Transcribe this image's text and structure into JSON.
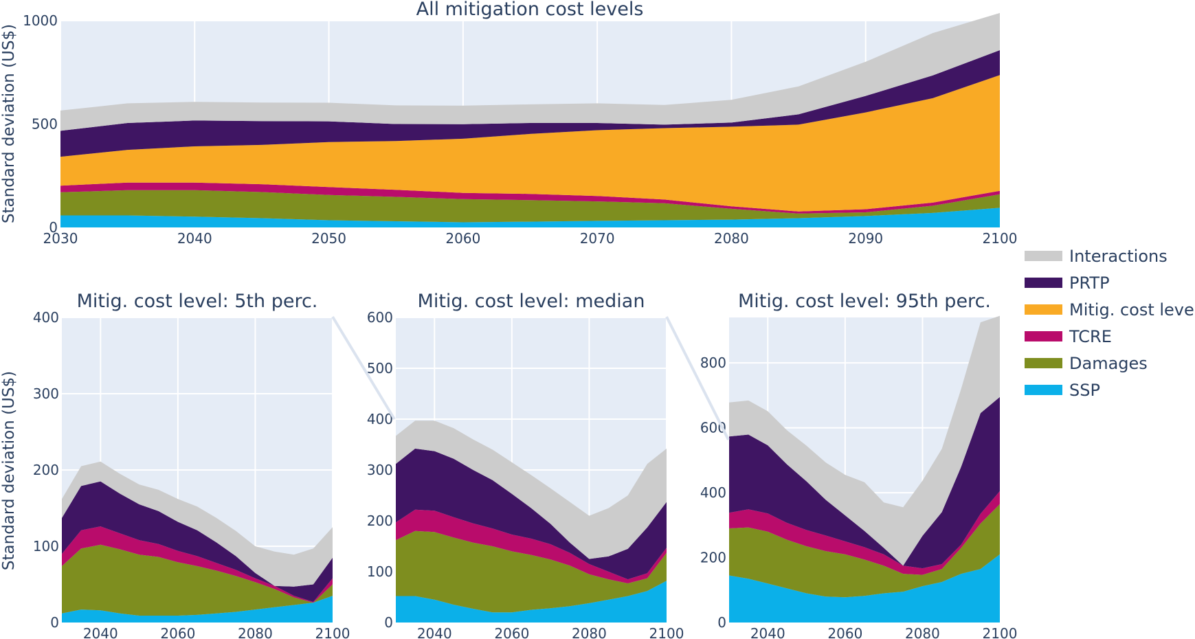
{
  "legend": [
    {
      "key": "interactions",
      "label": "Interactions",
      "color": "#CCCCCC"
    },
    {
      "key": "prtp",
      "label": "PRTP",
      "color": "#3F1563"
    },
    {
      "key": "mitig",
      "label": "Mitig. cost level",
      "color": "#F9AA25"
    },
    {
      "key": "tcre",
      "label": "TCRE",
      "color": "#B90C6B"
    },
    {
      "key": "damages",
      "label": "Damages",
      "color": "#7E8E1F"
    },
    {
      "key": "ssp",
      "label": "SSP",
      "color": "#0BB0E9"
    }
  ],
  "chart_data": [
    {
      "id": "all",
      "type": "area",
      "stacked": true,
      "title": "All mitigation cost levels",
      "xlabel": "",
      "ylabel": "Standard deviation (US$)",
      "x": [
        2030,
        2035,
        2040,
        2045,
        2050,
        2055,
        2060,
        2065,
        2070,
        2075,
        2080,
        2085,
        2090,
        2095,
        2100
      ],
      "xlim": [
        2030,
        2100
      ],
      "xticks": [
        2030,
        2040,
        2050,
        2060,
        2070,
        2080,
        2090,
        2100
      ],
      "ylim": [
        0,
        1000
      ],
      "yticks": [
        0,
        500,
        1000
      ],
      "series": [
        {
          "key": "ssp",
          "name": "SSP",
          "values": [
            58,
            58,
            52,
            45,
            35,
            30,
            25,
            28,
            32,
            35,
            38,
            45,
            55,
            70,
            95
          ]
        },
        {
          "key": "damages",
          "name": "Damages",
          "values": [
            112,
            122,
            128,
            126,
            122,
            118,
            112,
            104,
            94,
            82,
            52,
            22,
            18,
            35,
            65
          ]
        },
        {
          "key": "tcre",
          "name": "TCRE",
          "values": [
            32,
            37,
            37,
            38,
            38,
            34,
            30,
            30,
            26,
            18,
            12,
            10,
            15,
            15,
            17
          ]
        },
        {
          "key": "mitig",
          "name": "Mitig. cost level",
          "values": [
            140,
            158,
            175,
            190,
            218,
            236,
            262,
            290,
            318,
            345,
            385,
            420,
            468,
            505,
            560
          ]
        },
        {
          "key": "prtp",
          "name": "PRTP",
          "values": [
            125,
            130,
            125,
            115,
            100,
            82,
            70,
            53,
            35,
            17,
            20,
            50,
            80,
            110,
            120
          ]
        },
        {
          "key": "interactions",
          "name": "Interactions",
          "values": [
            98,
            95,
            90,
            90,
            90,
            90,
            90,
            90,
            95,
            95,
            110,
            135,
            165,
            205,
            180
          ]
        }
      ]
    },
    {
      "id": "p5",
      "type": "area",
      "stacked": true,
      "title": "Mitig. cost level: 5th perc.",
      "xlabel": "",
      "ylabel": "Standard deviation (US$)",
      "x": [
        2030,
        2035,
        2040,
        2045,
        2050,
        2055,
        2060,
        2065,
        2070,
        2075,
        2080,
        2085,
        2090,
        2095,
        2100
      ],
      "xlim": [
        2030,
        2100
      ],
      "xticks": [
        2040,
        2060,
        2080,
        2100
      ],
      "ylim": [
        0,
        400
      ],
      "yticks": [
        0,
        100,
        200,
        300,
        400
      ],
      "series": [
        {
          "key": "ssp",
          "name": "SSP",
          "values": [
            12,
            17,
            16,
            12,
            9,
            9,
            9,
            10,
            12,
            14,
            17,
            20,
            23,
            26,
            35
          ]
        },
        {
          "key": "damages",
          "name": "Damages",
          "values": [
            62,
            80,
            86,
            84,
            80,
            77,
            70,
            64,
            56,
            47,
            36,
            24,
            10,
            0,
            15
          ]
        },
        {
          "key": "tcre",
          "name": "TCRE",
          "values": [
            16,
            24,
            24,
            21,
            19,
            17,
            15,
            13,
            10,
            8,
            5,
            4,
            2,
            1,
            8
          ]
        },
        {
          "key": "mitig",
          "name": "Mitig. cost level",
          "values": [
            0,
            0,
            0,
            0,
            0,
            0,
            0,
            0,
            0,
            0,
            0,
            0,
            0,
            0,
            0
          ]
        },
        {
          "key": "prtp",
          "name": "PRTP",
          "values": [
            47,
            58,
            59,
            52,
            47,
            43,
            38,
            34,
            27,
            18,
            7,
            0,
            12,
            23,
            27
          ]
        },
        {
          "key": "interactions",
          "name": "Interactions",
          "values": [
            25,
            26,
            26,
            26,
            26,
            28,
            30,
            31,
            32,
            33,
            35,
            45,
            42,
            47,
            40
          ]
        }
      ]
    },
    {
      "id": "median",
      "type": "area",
      "stacked": true,
      "title": "Mitig. cost level: median",
      "xlabel": "",
      "ylabel": "",
      "x": [
        2030,
        2035,
        2040,
        2045,
        2050,
        2055,
        2060,
        2065,
        2070,
        2075,
        2080,
        2085,
        2090,
        2095,
        2100
      ],
      "xlim": [
        2030,
        2100
      ],
      "xticks": [
        2040,
        2060,
        2080,
        2100
      ],
      "ylim": [
        0,
        600
      ],
      "yticks": [
        0,
        100,
        200,
        300,
        400,
        500,
        600
      ],
      "series": [
        {
          "key": "ssp",
          "name": "SSP",
          "values": [
            52,
            52,
            45,
            35,
            27,
            20,
            20,
            25,
            28,
            32,
            38,
            45,
            52,
            62,
            82
          ]
        },
        {
          "key": "damages",
          "name": "Damages",
          "values": [
            110,
            128,
            133,
            132,
            130,
            130,
            120,
            108,
            96,
            80,
            57,
            40,
            25,
            25,
            55
          ]
        },
        {
          "key": "tcre",
          "name": "TCRE",
          "values": [
            35,
            42,
            42,
            40,
            38,
            35,
            33,
            32,
            30,
            25,
            20,
            15,
            8,
            10,
            10
          ]
        },
        {
          "key": "mitig",
          "name": "Mitig. cost level",
          "values": [
            0,
            0,
            0,
            0,
            0,
            0,
            0,
            0,
            0,
            0,
            0,
            0,
            0,
            0,
            0
          ]
        },
        {
          "key": "prtp",
          "name": "PRTP",
          "values": [
            115,
            120,
            117,
            115,
            105,
            95,
            80,
            60,
            40,
            20,
            10,
            30,
            60,
            90,
            90
          ]
        },
        {
          "key": "interactions",
          "name": "Interactions",
          "values": [
            55,
            55,
            60,
            60,
            60,
            60,
            62,
            65,
            70,
            80,
            85,
            95,
            105,
            125,
            105
          ]
        }
      ]
    },
    {
      "id": "p95",
      "type": "area",
      "stacked": true,
      "title": "Mitig. cost level: 95th perc.",
      "xlabel": "",
      "ylabel": "",
      "x": [
        2030,
        2035,
        2040,
        2045,
        2050,
        2055,
        2060,
        2065,
        2070,
        2075,
        2080,
        2085,
        2090,
        2095,
        2100
      ],
      "xlim": [
        2030,
        2100
      ],
      "xticks": [
        2040,
        2060,
        2080,
        2100
      ],
      "ylim": [
        0,
        940
      ],
      "yticks": [
        0,
        200,
        400,
        600,
        800
      ],
      "series": [
        {
          "key": "ssp",
          "name": "SSP",
          "values": [
            145,
            135,
            120,
            105,
            90,
            80,
            78,
            82,
            90,
            95,
            112,
            125,
            150,
            165,
            210
          ]
        },
        {
          "key": "damages",
          "name": "Damages",
          "values": [
            145,
            158,
            160,
            150,
            145,
            140,
            132,
            112,
            85,
            55,
            35,
            40,
            80,
            140,
            155
          ]
        },
        {
          "key": "tcre",
          "name": "TCRE",
          "values": [
            48,
            56,
            56,
            52,
            50,
            48,
            40,
            38,
            35,
            25,
            20,
            15,
            10,
            30,
            40
          ]
        },
        {
          "key": "mitig",
          "name": "Mitig. cost level",
          "values": [
            0,
            0,
            0,
            0,
            0,
            0,
            0,
            0,
            0,
            0,
            0,
            0,
            0,
            0,
            0
          ]
        },
        {
          "key": "prtp",
          "name": "PRTP",
          "values": [
            235,
            230,
            210,
            180,
            150,
            110,
            80,
            50,
            20,
            0,
            100,
            160,
            240,
            310,
            290
          ]
        },
        {
          "key": "interactions",
          "name": "Interactions",
          "values": [
            105,
            105,
            105,
            105,
            110,
            115,
            125,
            150,
            140,
            180,
            170,
            195,
            240,
            280,
            250
          ]
        }
      ]
    }
  ]
}
